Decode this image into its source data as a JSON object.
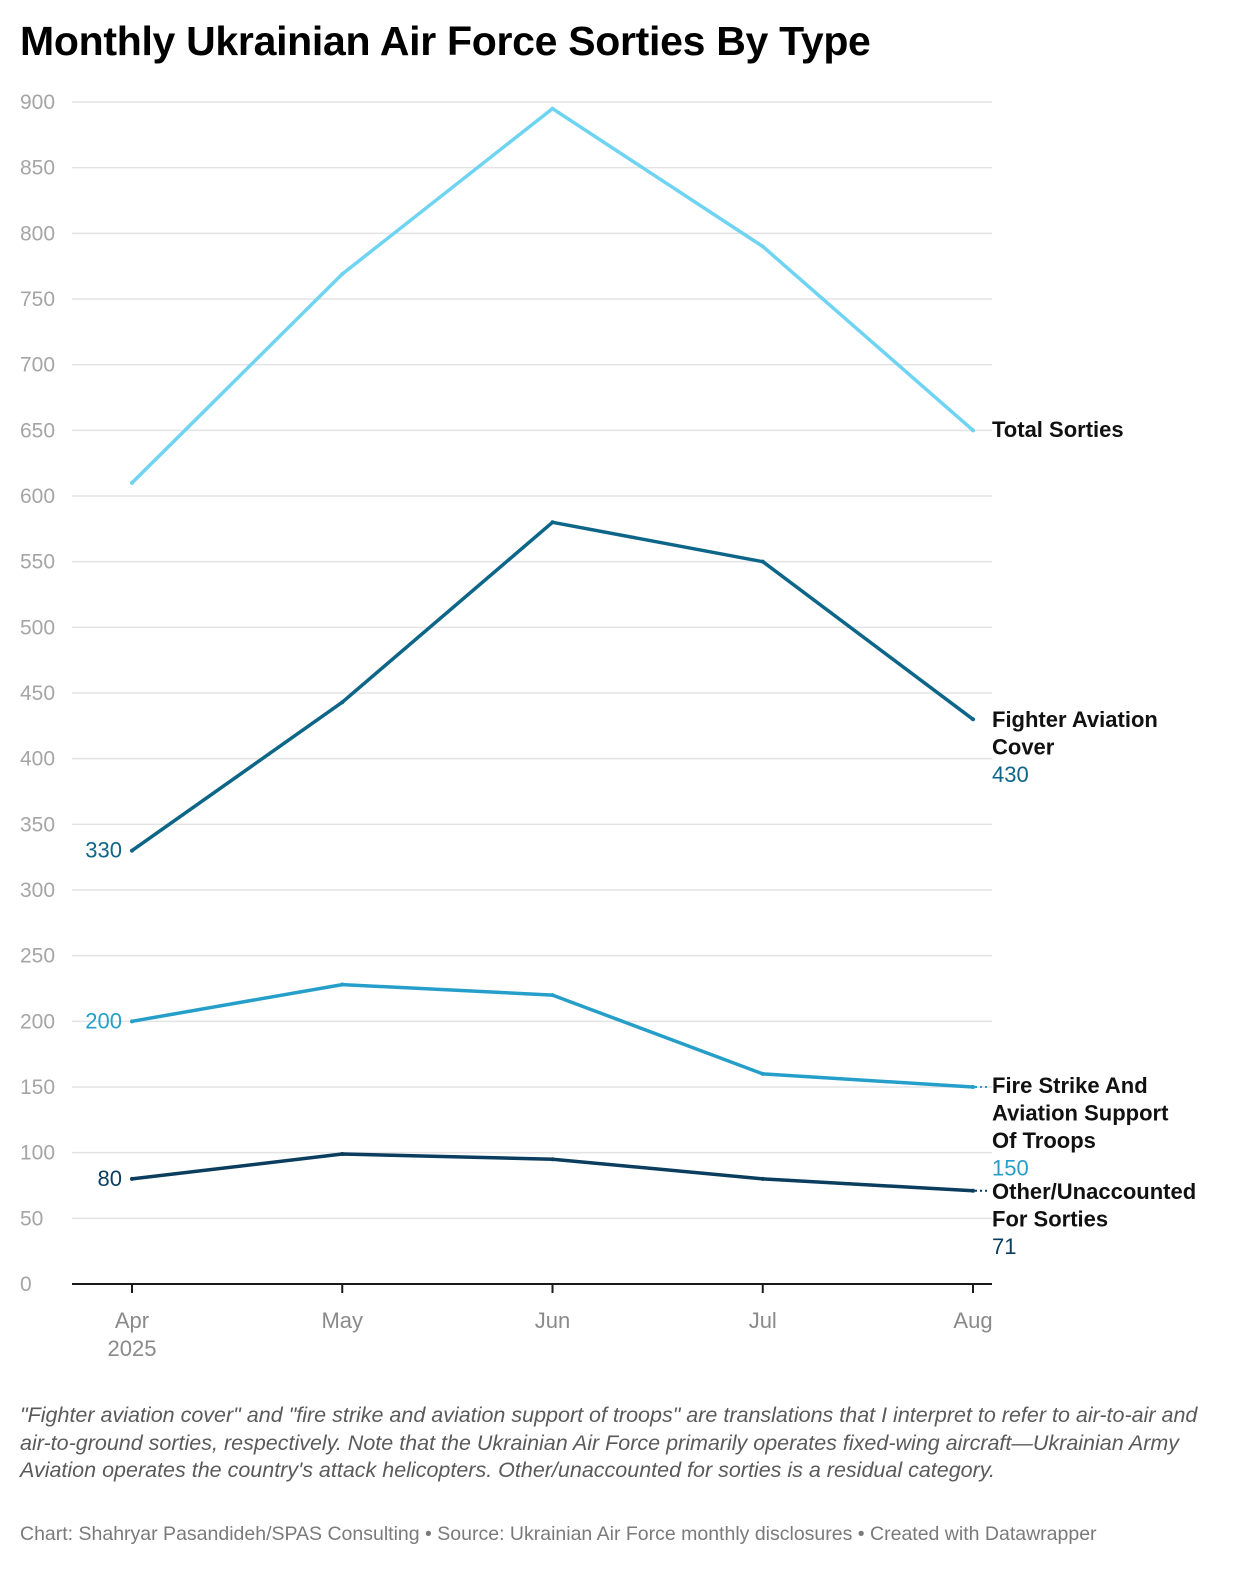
{
  "header": {
    "title": "Monthly Ukrainian Air Force Sorties By Type"
  },
  "chart_data": {
    "type": "line",
    "title": "Monthly Ukrainian Air Force Sorties By Type",
    "xlabel": "",
    "ylabel": "",
    "categories": [
      "Apr",
      "May",
      "Jun",
      "Jul",
      "Aug"
    ],
    "category_sublabels": [
      "2025",
      "",
      "",
      "",
      ""
    ],
    "ylim": [
      0,
      900
    ],
    "yticks": [
      0,
      50,
      100,
      150,
      200,
      250,
      300,
      350,
      400,
      450,
      500,
      550,
      600,
      650,
      700,
      750,
      800,
      850,
      900
    ],
    "grid": true,
    "legend": "direct labels at right end of lines",
    "series": [
      {
        "id": "total",
        "name": "Total Sorties",
        "label_lines": [
          "Total Sorties"
        ],
        "color": "#6fd3f2",
        "values": [
          610,
          769,
          895,
          790,
          650
        ],
        "start_label": "",
        "end_label": ""
      },
      {
        "id": "fighter",
        "name": "Fighter Aviation Cover",
        "label_lines": [
          "Fighter Aviation",
          "Cover"
        ],
        "color": "#0d6688",
        "values": [
          330,
          443,
          580,
          550,
          430
        ],
        "start_label": "330",
        "end_label": "430"
      },
      {
        "id": "fire",
        "name": "Fire Strike And Aviation Support Of Troops",
        "label_lines": [
          "Fire Strike And",
          "Aviation Support",
          "Of Troops"
        ],
        "color": "#259fca",
        "values": [
          200,
          228,
          220,
          160,
          150
        ],
        "start_label": "200",
        "end_label": "150"
      },
      {
        "id": "other",
        "name": "Other/Unaccounted For Sorties",
        "label_lines": [
          "Other/Unaccounted",
          "For Sorties"
        ],
        "color": "#0a3d5e",
        "values": [
          80,
          99,
          95,
          80,
          71
        ],
        "start_label": "80",
        "end_label": "71"
      }
    ],
    "annotations": {
      "tick_color": "#a5a5a5",
      "grid_color": "#e3e3e3",
      "axis_color": "#1a1a1a"
    }
  },
  "footer": {
    "notes": "\"Fighter aviation cover\" and \"fire strike and aviation support of troops\" are translations that I interpret to refer to air-to-air and air-to-ground sorties, respectively. Note that the Ukrainian Air Force primarily operates fixed-wing aircraft—Ukrainian Army Aviation operates the country's attack helicopters. Other/unaccounted for sorties is a residual category.",
    "credits": "Chart: Shahryar Pasandideh/SPAS Consulting • Source: Ukrainian Air Force monthly disclosures • Created with Datawrapper"
  }
}
